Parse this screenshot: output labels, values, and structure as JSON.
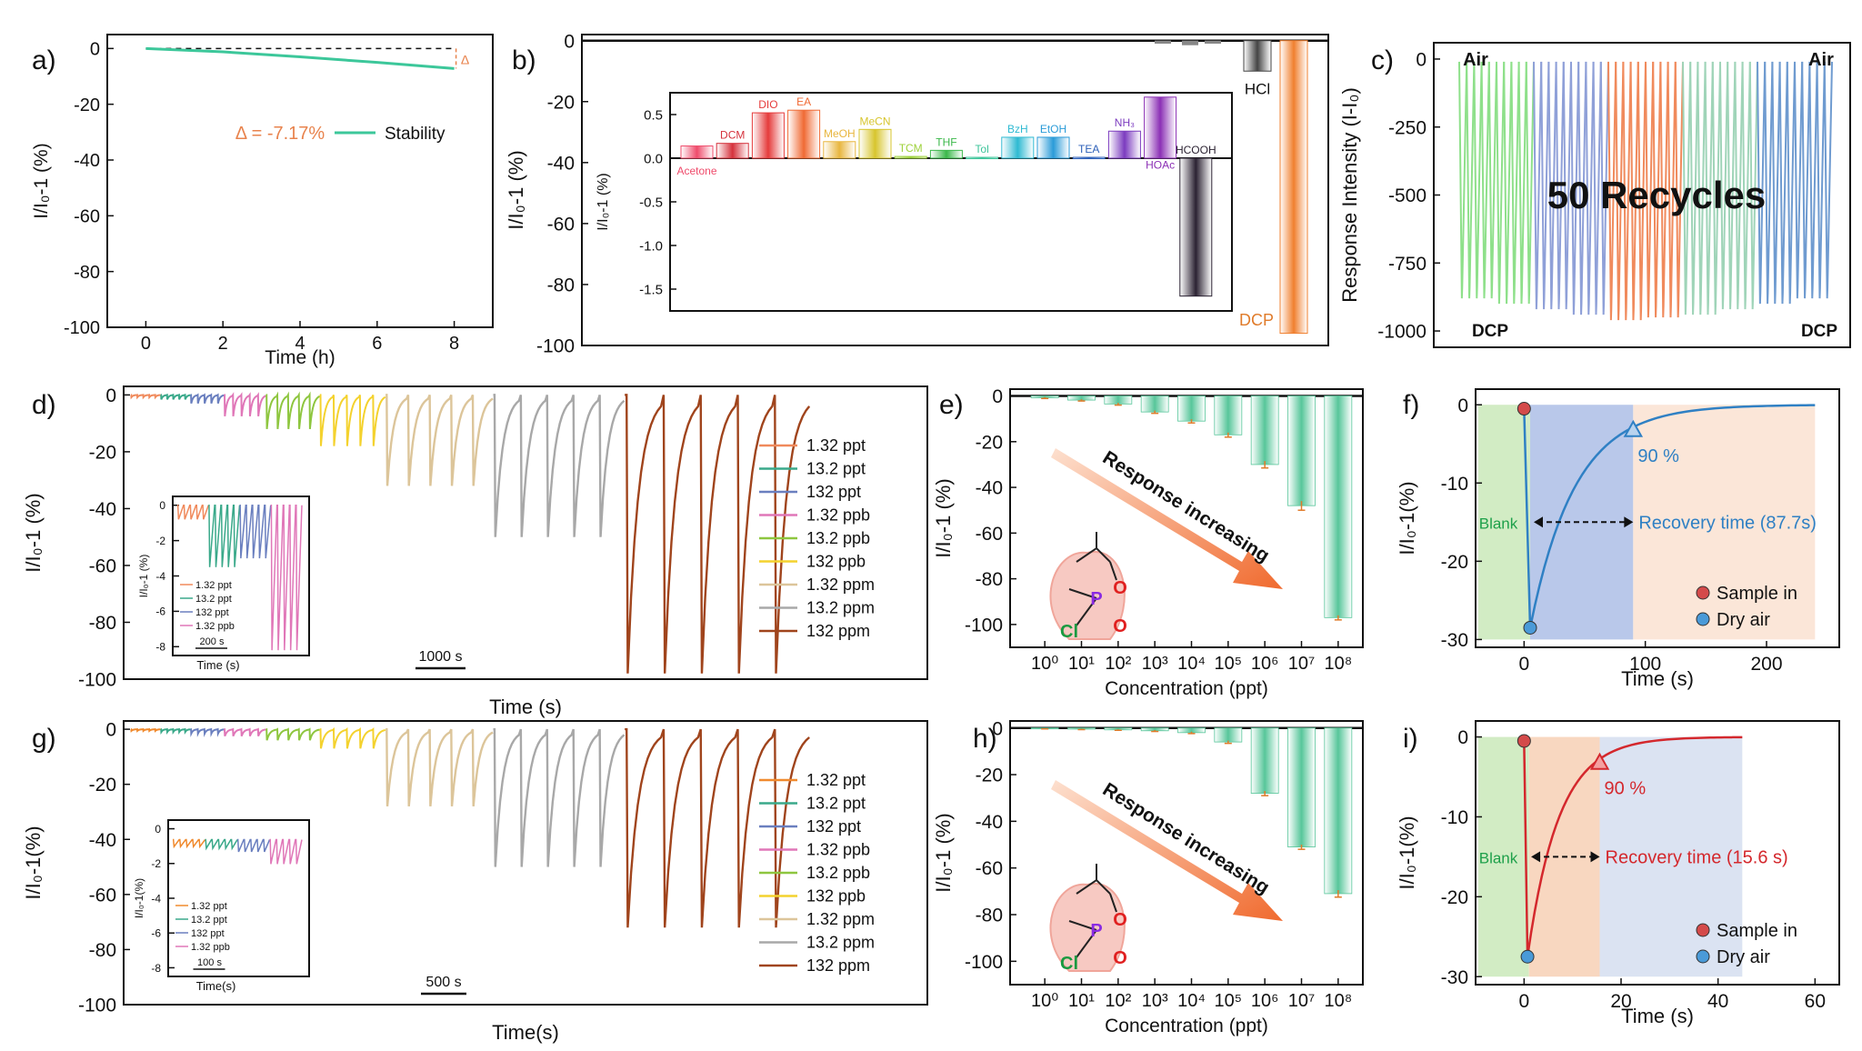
{
  "chart_data": [
    {
      "panel": "a)",
      "type": "line",
      "xlabel": "Time (h)",
      "ylabel": "I/I₀-1 (%)",
      "xlim": [
        -1,
        9
      ],
      "ylim": [
        -100,
        5
      ],
      "xticks": [
        0,
        2,
        4,
        6,
        8
      ],
      "yticks": [
        0,
        -20,
        -40,
        -60,
        -80,
        -100
      ],
      "series": [
        {
          "name": "Stability",
          "color": "#3cc79a",
          "x": [
            0,
            2,
            4,
            6,
            8
          ],
          "y": [
            0,
            -1.2,
            -3.0,
            -5.0,
            -7.17
          ]
        }
      ],
      "delta_symbol": "Δ",
      "annotation": "Δ = -7.17%",
      "annotation_color": "#e8834d"
    },
    {
      "panel": "b)",
      "type": "bar",
      "ylabel": "I/I₀-1 (%)",
      "ylim": [
        -100,
        2
      ],
      "yticks": [
        0,
        -20,
        -40,
        -60,
        -80,
        -100
      ],
      "categories": [
        "HCl",
        "DCP"
      ],
      "values": [
        -10,
        -96
      ],
      "colors": [
        "#444444",
        "#f07f2e"
      ],
      "inset": {
        "type": "bar",
        "ylabel": "I/I₀-1 (%)",
        "ylim": [
          -1.75,
          0.75
        ],
        "yticks": [
          0.5,
          0.0,
          -0.5,
          -1.0,
          -1.5
        ],
        "ytick_labels": [
          "0.5",
          "0.0",
          "-0.5",
          "-1.0",
          "-1.5"
        ],
        "categories": [
          "Acetone",
          "DCM",
          "DIO",
          "EA",
          "MeOH",
          "MeCN",
          "TCM",
          "THF",
          "Tol",
          "BzH",
          "EtOH",
          "TEA",
          "NH₃",
          "HOAc",
          "HCOOH"
        ],
        "values": [
          0.14,
          0.17,
          0.52,
          0.55,
          0.19,
          0.33,
          0.02,
          0.09,
          0.01,
          0.24,
          0.24,
          0.01,
          0.31,
          0.7,
          -1.58
        ],
        "colors": [
          "#ef4b6b",
          "#d5313b",
          "#e53b3b",
          "#f06a34",
          "#e8b63f",
          "#d7c52d",
          "#9dd13a",
          "#3bb84a",
          "#3dc49a",
          "#2fbad2",
          "#2a9bd8",
          "#2c5fb8",
          "#7b3bbf",
          "#8b2fb5",
          "#2b2232"
        ]
      }
    },
    {
      "panel": "c)",
      "type": "line",
      "ylabel": "Response Intensity (I-I₀)",
      "ylim": [
        -1060,
        60
      ],
      "yticks": [
        0,
        -250,
        -500,
        -750,
        -1000
      ],
      "labels": {
        "air_left": "Air",
        "air_right": "Air",
        "dcp_left": "DCP",
        "dcp_right": "DCP"
      },
      "annotation": "50 Recycles",
      "cycles": 50,
      "cycle_minima": [
        -880,
        -900,
        -920,
        -940,
        -960,
        -950,
        -940,
        -920,
        -900,
        -880
      ],
      "segment_colors": [
        "#8ee08a",
        "#8fa0d8",
        "#f08a5c",
        "#9fd4b8",
        "#6f9bd0"
      ]
    },
    {
      "panel": "d)",
      "type": "line",
      "xlabel": "Time (s)",
      "ylabel": "I/I₀-1 (%)",
      "ylim": [
        -100,
        3
      ],
      "yticks": [
        0,
        -20,
        -40,
        -60,
        -80,
        -100
      ],
      "scalebar": "1000 s",
      "series": [
        {
          "name": "1.32 ppt",
          "color": "#f08a5c",
          "dip": -0.8,
          "cycles": 5
        },
        {
          "name": "13.2 ppt",
          "color": "#3aa98a",
          "dip": -1.6,
          "cycles": 5
        },
        {
          "name": "132 ppt",
          "color": "#6a7fbf",
          "dip": -3.0,
          "cycles": 5
        },
        {
          "name": "1.32 ppb",
          "color": "#e077b8",
          "dip": -7.5,
          "cycles": 5
        },
        {
          "name": "13.2 ppb",
          "color": "#8ec63f",
          "dip": -12,
          "cycles": 5
        },
        {
          "name": "132 ppb",
          "color": "#f4d22e",
          "dip": -18,
          "cycles": 5
        },
        {
          "name": "1.32 ppm",
          "color": "#dcc59a",
          "dip": -32,
          "cycles": 5
        },
        {
          "name": "13.2 ppm",
          "color": "#a8a8a8",
          "dip": -50,
          "cycles": 5
        },
        {
          "name": "132 ppm",
          "color": "#a0441c",
          "dip": -98,
          "cycles": 5
        }
      ],
      "inset": {
        "xlabel": "Time (s)",
        "ylabel": "I/I₀-1 (%)",
        "ylim": [
          -8.5,
          0.5
        ],
        "yticks": [
          0,
          -2,
          -4,
          -6,
          -8
        ],
        "scalebar": "200 s",
        "series_names": [
          "1.32 ppt",
          "13.2 ppt",
          "132 ppt",
          "1.32 ppb"
        ]
      }
    },
    {
      "panel": "e)",
      "type": "bar",
      "xlabel": "Concentration (ppt)",
      "ylabel": "I/I₀-1 (%)",
      "ylim": [
        -110,
        3
      ],
      "yticks": [
        0,
        -20,
        -40,
        -60,
        -80,
        -100
      ],
      "categories": [
        "10⁰",
        "10¹",
        "10²",
        "10³",
        "10⁴",
        "10⁵",
        "10⁶",
        "10⁷",
        "10⁸"
      ],
      "values": [
        -0.8,
        -1.8,
        -3.5,
        -7,
        -11,
        -17,
        -30,
        -48,
        -97
      ],
      "error": [
        0.3,
        0.4,
        0.5,
        0.6,
        0.8,
        1,
        1.5,
        2,
        1
      ],
      "annotation": "Response increasing",
      "molecule_labels": {
        "p": "P",
        "o1": "O",
        "o2": "O",
        "cl": "Cl"
      }
    },
    {
      "panel": "f)",
      "type": "line",
      "xlabel": "Time (s)",
      "ylabel": "I/I₀-1(%)",
      "xlim": [
        -40,
        260
      ],
      "ylim": [
        -31,
        2
      ],
      "xticks": [
        0,
        100,
        200
      ],
      "yticks": [
        0,
        -10,
        -20,
        -30
      ],
      "regions": {
        "blank": "Blank",
        "blank_end": 5,
        "recovery_end": 90
      },
      "points": {
        "sample_in": [
          0,
          -0.5
        ],
        "dry_air": [
          5,
          -28.5
        ],
        "ninety": [
          90,
          -3.2
        ]
      },
      "ninety_label": "90 %",
      "recovery_label": "Recovery time (87.7s)",
      "legend": [
        "Sample in",
        "Dry air"
      ],
      "curve_color": "#2f80c4"
    },
    {
      "panel": "g)",
      "type": "line",
      "xlabel": "Time(s)",
      "ylabel": "I/I₀-1(%)",
      "ylim": [
        -100,
        3
      ],
      "yticks": [
        0,
        -20,
        -40,
        -60,
        -80,
        -100
      ],
      "scalebar": "500 s",
      "series": [
        {
          "name": "1.32 ppt",
          "color": "#f08a2e",
          "dip": -0.6,
          "cycles": 5
        },
        {
          "name": "13.2 ppt",
          "color": "#3aa98a",
          "dip": -1.0,
          "cycles": 5
        },
        {
          "name": "132 ppt",
          "color": "#6a7fbf",
          "dip": -1.6,
          "cycles": 5
        },
        {
          "name": "1.32 ppb",
          "color": "#e077b8",
          "dip": -2.5,
          "cycles": 5
        },
        {
          "name": "13.2 ppb",
          "color": "#8ec63f",
          "dip": -4,
          "cycles": 5
        },
        {
          "name": "132 ppb",
          "color": "#f4d22e",
          "dip": -7,
          "cycles": 5
        },
        {
          "name": "1.32 ppm",
          "color": "#dcc59a",
          "dip": -28,
          "cycles": 5
        },
        {
          "name": "13.2 ppm",
          "color": "#a8a8a8",
          "dip": -50,
          "cycles": 5
        },
        {
          "name": "132 ppm",
          "color": "#a0441c",
          "dip": -72,
          "cycles": 5
        }
      ],
      "inset": {
        "xlabel": "Time(s)",
        "ylabel": "I/I₀-1(%)",
        "ylim": [
          -8.5,
          0.5
        ],
        "yticks": [
          0,
          -2,
          -4,
          -6,
          -8
        ],
        "scalebar": "100 s",
        "series_names": [
          "1.32 ppt",
          "13.2 ppt",
          "132 ppt",
          "1.32 ppb"
        ]
      }
    },
    {
      "panel": "h)",
      "type": "bar",
      "xlabel": "Concentration (ppt)",
      "ylabel": "I/I₀-1 (%)",
      "ylim": [
        -110,
        3
      ],
      "yticks": [
        0,
        -20,
        -40,
        -60,
        -80,
        -100
      ],
      "categories": [
        "10⁰",
        "10¹",
        "10²",
        "10³",
        "10⁴",
        "10⁵",
        "10⁶",
        "10⁷",
        "10⁸"
      ],
      "values": [
        -0.3,
        -0.5,
        -0.8,
        -1.2,
        -2,
        -6,
        -28,
        -51,
        -71
      ],
      "error": [
        0.1,
        0.2,
        0.2,
        0.3,
        0.4,
        0.6,
        1,
        1,
        1.5
      ],
      "annotation": "Response increasing",
      "molecule_labels": {
        "p": "P",
        "o1": "O",
        "o2": "O",
        "cl": "Cl"
      }
    },
    {
      "panel": "i)",
      "type": "line",
      "xlabel": "Time (s)",
      "ylabel": "I/I₀-1(%)",
      "xlim": [
        -10,
        65
      ],
      "ylim": [
        -31,
        2
      ],
      "xticks": [
        0,
        20,
        40,
        60
      ],
      "yticks": [
        0,
        -10,
        -20,
        -30
      ],
      "regions": {
        "blank": "Blank",
        "blank_end": 1,
        "recovery_end": 15.6
      },
      "points": {
        "sample_in": [
          0,
          -0.5
        ],
        "dry_air": [
          0.7,
          -27.5
        ],
        "ninety": [
          15.6,
          -3.2
        ]
      },
      "ninety_label": "90 %",
      "recovery_label": "Recovery time (15.6 s)",
      "legend": [
        "Sample in",
        "Dry air"
      ],
      "curve_color": "#d4282d"
    }
  ]
}
